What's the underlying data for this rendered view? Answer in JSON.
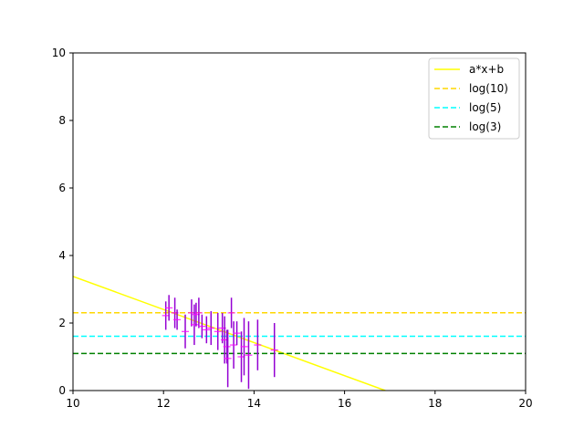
{
  "chart_data": {
    "type": "scatter",
    "title": "",
    "xlabel": "",
    "ylabel": "",
    "xlim": [
      10,
      20
    ],
    "ylim": [
      0,
      10
    ],
    "xticks": [
      10,
      12,
      14,
      16,
      18,
      20
    ],
    "yticks": [
      0,
      2,
      4,
      6,
      8,
      10
    ],
    "grid": false,
    "legend_position": "top-right",
    "lines": [
      {
        "name": "a*x+b",
        "kind": "fit",
        "style": "solid",
        "color": "#ffff00",
        "x": [
          10,
          16.9
        ],
        "y": [
          3.38,
          0
        ]
      },
      {
        "name": "log(10)",
        "kind": "hline",
        "style": "dashed",
        "color": "#ffd700",
        "y": 2.3026
      },
      {
        "name": "log(5)",
        "kind": "hline",
        "style": "dashed",
        "color": "#00ffff",
        "y": 1.6094
      },
      {
        "name": "log(3)",
        "kind": "hline",
        "style": "dashed",
        "color": "#008000",
        "y": 1.0986
      }
    ],
    "points": {
      "marker_color": "#ff00ff",
      "errorbar_color": "#9400d3",
      "data": [
        {
          "x": 12.05,
          "y": 2.22,
          "yerr": 0.42
        },
        {
          "x": 12.12,
          "y": 2.45,
          "yerr": 0.38
        },
        {
          "x": 12.25,
          "y": 2.3,
          "yerr": 0.45
        },
        {
          "x": 12.3,
          "y": 2.1,
          "yerr": 0.3
        },
        {
          "x": 12.48,
          "y": 1.75,
          "yerr": 0.5
        },
        {
          "x": 12.62,
          "y": 2.3,
          "yerr": 0.4
        },
        {
          "x": 12.68,
          "y": 1.95,
          "yerr": 0.6
        },
        {
          "x": 12.72,
          "y": 2.25,
          "yerr": 0.35
        },
        {
          "x": 12.78,
          "y": 2.3,
          "yerr": 0.45
        },
        {
          "x": 12.85,
          "y": 1.9,
          "yerr": 0.35
        },
        {
          "x": 12.95,
          "y": 1.8,
          "yerr": 0.4
        },
        {
          "x": 13.05,
          "y": 1.85,
          "yerr": 0.5
        },
        {
          "x": 13.2,
          "y": 1.75,
          "yerr": 0.55
        },
        {
          "x": 13.3,
          "y": 1.85,
          "yerr": 0.45
        },
        {
          "x": 13.35,
          "y": 1.5,
          "yerr": 0.7
        },
        {
          "x": 13.4,
          "y": 1.3,
          "yerr": 0.5
        },
        {
          "x": 13.42,
          "y": 0.95,
          "yerr": 0.85
        },
        {
          "x": 13.5,
          "y": 2.3,
          "yerr": 0.45
        },
        {
          "x": 13.55,
          "y": 1.35,
          "yerr": 0.7
        },
        {
          "x": 13.62,
          "y": 1.7,
          "yerr": 0.35
        },
        {
          "x": 13.72,
          "y": 1.0,
          "yerr": 0.75
        },
        {
          "x": 13.78,
          "y": 1.3,
          "yerr": 0.85
        },
        {
          "x": 13.88,
          "y": 1.05,
          "yerr": 1.0
        },
        {
          "x": 14.08,
          "y": 1.35,
          "yerr": 0.75
        },
        {
          "x": 14.45,
          "y": 1.2,
          "yerr": 0.8
        }
      ]
    }
  }
}
